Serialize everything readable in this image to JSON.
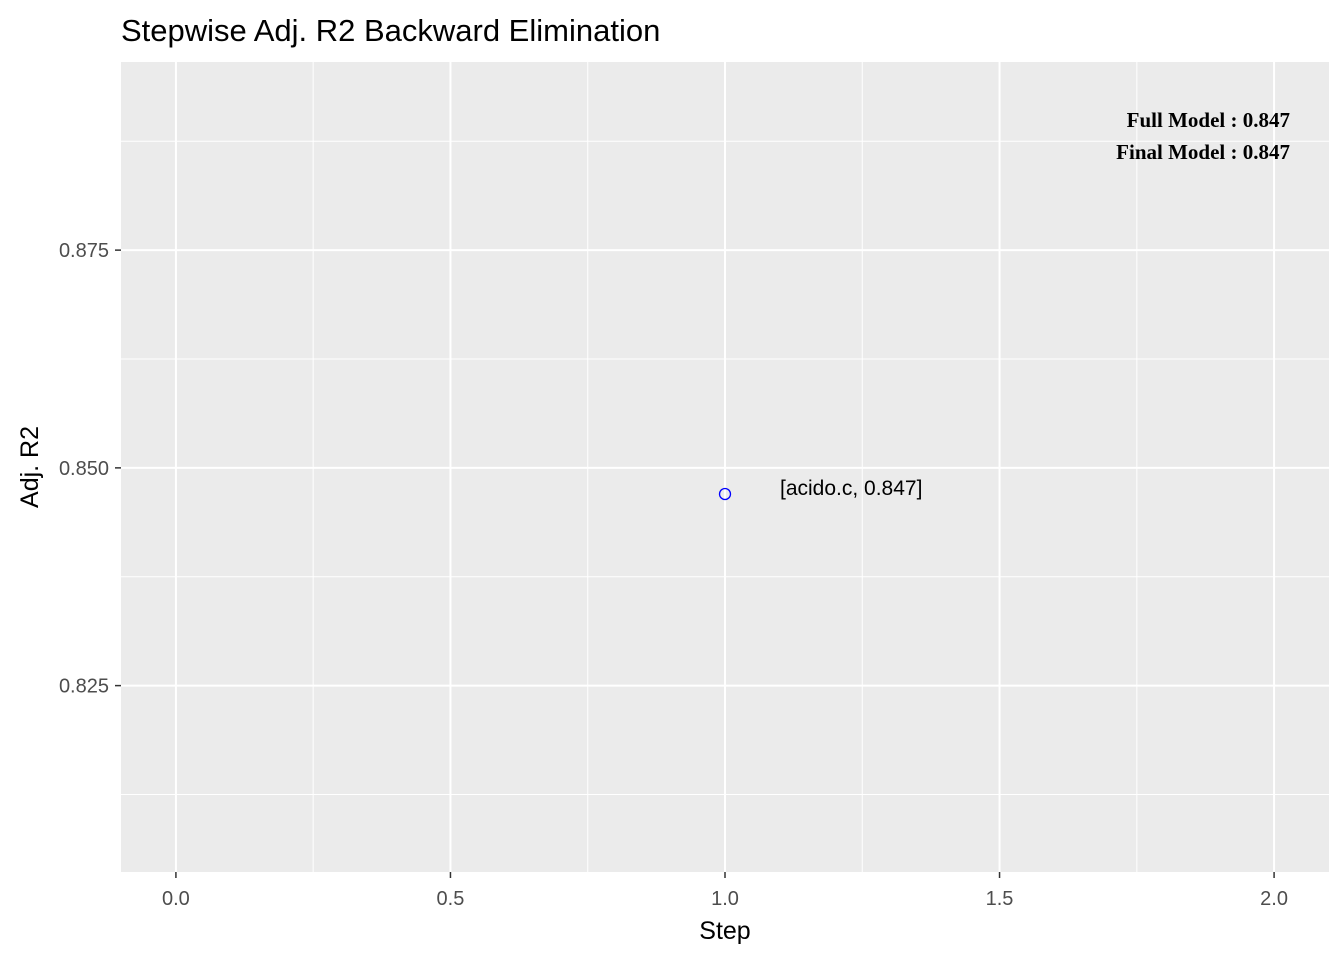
{
  "chart_data": {
    "type": "scatter",
    "title": "Stepwise Adj. R2 Backward Elimination",
    "xlabel": "Step",
    "ylabel": "Adj. R2",
    "xlim": [
      -0.1,
      2.1
    ],
    "ylim": [
      0.8036,
      0.8966
    ],
    "x_ticks": [
      0.0,
      0.5,
      1.0,
      1.5,
      2.0
    ],
    "x_tick_labels": [
      "0.0",
      "0.5",
      "1.0",
      "1.5",
      "2.0"
    ],
    "y_ticks": [
      0.825,
      0.85,
      0.875
    ],
    "y_tick_labels": [
      "0.825",
      "0.850",
      "0.875"
    ],
    "grid": true,
    "series": [
      {
        "points": [
          {
            "x": 1.0,
            "y": 0.847,
            "label": "[acido.c, 0.847]"
          }
        ],
        "marker": "open-circle",
        "color": "#0000ff"
      }
    ],
    "annotations": [
      "Full Model  : 0.847",
      "Final Model : 0.847"
    ],
    "annotation_placement": "top-right",
    "panel_background": "#ebebeb",
    "grid_color": "#ffffff"
  }
}
